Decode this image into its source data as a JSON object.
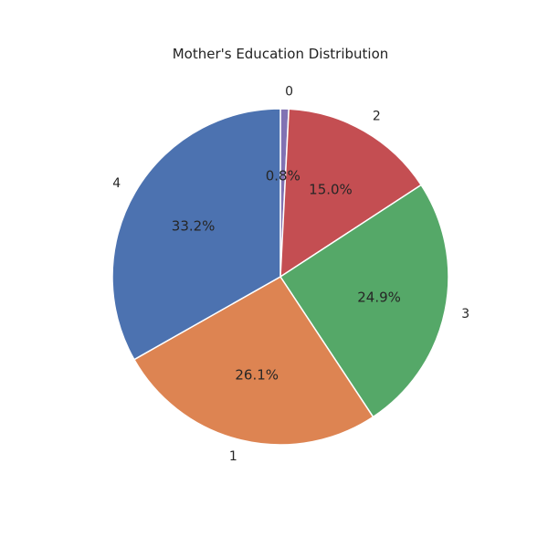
{
  "chart_data": {
    "type": "pie",
    "title": "Mother's Education Distribution",
    "slices": [
      {
        "label": "0",
        "percent": 0.8,
        "percent_label": "0.8%",
        "color": "#8172b3"
      },
      {
        "label": "2",
        "percent": 15.0,
        "percent_label": "15.0%",
        "color": "#c44e52"
      },
      {
        "label": "3",
        "percent": 24.9,
        "percent_label": "24.9%",
        "color": "#55a868"
      },
      {
        "label": "1",
        "percent": 26.1,
        "percent_label": "26.1%",
        "color": "#dd8452"
      },
      {
        "label": "4",
        "percent": 33.2,
        "percent_label": "33.2%",
        "color": "#4c72b0"
      }
    ]
  }
}
